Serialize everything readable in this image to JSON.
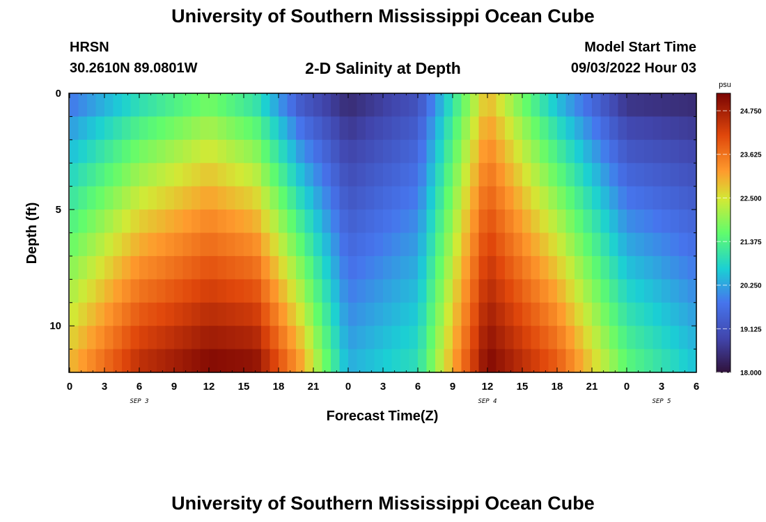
{
  "header": {
    "title": "University of Southern Mississippi Ocean Cube",
    "station": "HRSN",
    "coords": "30.2610N  89.0801W",
    "subtitle": "2-D Salinity at Depth",
    "model_start_label": "Model Start Time",
    "model_start_value": "09/03/2022 Hour 03"
  },
  "footer": {
    "title_repeat": "University of Southern Mississippi Ocean Cube"
  },
  "chart_data": {
    "type": "heatmap",
    "title": "2-D Salinity at Depth",
    "xlabel": "Forecast Time(Z)",
    "ylabel": "Depth (ft)",
    "x_tick_labels": [
      "0",
      "3",
      "6",
      "9",
      "12",
      "15",
      "18",
      "21",
      "0",
      "3",
      "6",
      "9",
      "12",
      "15",
      "18",
      "21",
      "0",
      "3",
      "6"
    ],
    "x_hours_range": [
      0,
      54
    ],
    "date_labels": [
      {
        "text": "SEP 3",
        "hour": 6
      },
      {
        "text": "SEP 4",
        "hour": 36
      },
      {
        "text": "SEP 5",
        "hour": 51
      }
    ],
    "y_tick_labels": [
      "0",
      "5",
      "10"
    ],
    "ylim": [
      0,
      12
    ],
    "y_inverted": true,
    "colorbar": {
      "unit": "psu",
      "min": 18.0,
      "max": 25.2,
      "ticks": [
        "24.750",
        "23.625",
        "22.500",
        "21.375",
        "20.250",
        "19.125",
        "18.000"
      ],
      "tick_values": [
        24.75,
        23.625,
        22.5,
        21.375,
        20.25,
        19.125,
        18.0
      ],
      "colormap": "turbo"
    },
    "depth_layers_ft": [
      0.5,
      1.5,
      2.5,
      3.5,
      4.5,
      5.5,
      6.5,
      7.5,
      8.5,
      9.5,
      10.5,
      11.5
    ],
    "salinity_profile_surface": {
      "hours": [
        0,
        6,
        12,
        16,
        20,
        24,
        30,
        36,
        42,
        48,
        54
      ],
      "values": [
        19.6,
        20.7,
        21.5,
        20.8,
        19.0,
        18.3,
        19.0,
        22.8,
        20.3,
        18.4,
        18.3
      ]
    },
    "salinity_profile_bottom": {
      "hours": [
        0,
        6,
        12,
        16,
        20,
        24,
        30,
        36,
        42,
        48,
        54
      ],
      "values": [
        23.0,
        24.6,
        25.2,
        25.1,
        23.2,
        20.4,
        21.0,
        25.2,
        24.0,
        21.6,
        20.6
      ]
    }
  }
}
